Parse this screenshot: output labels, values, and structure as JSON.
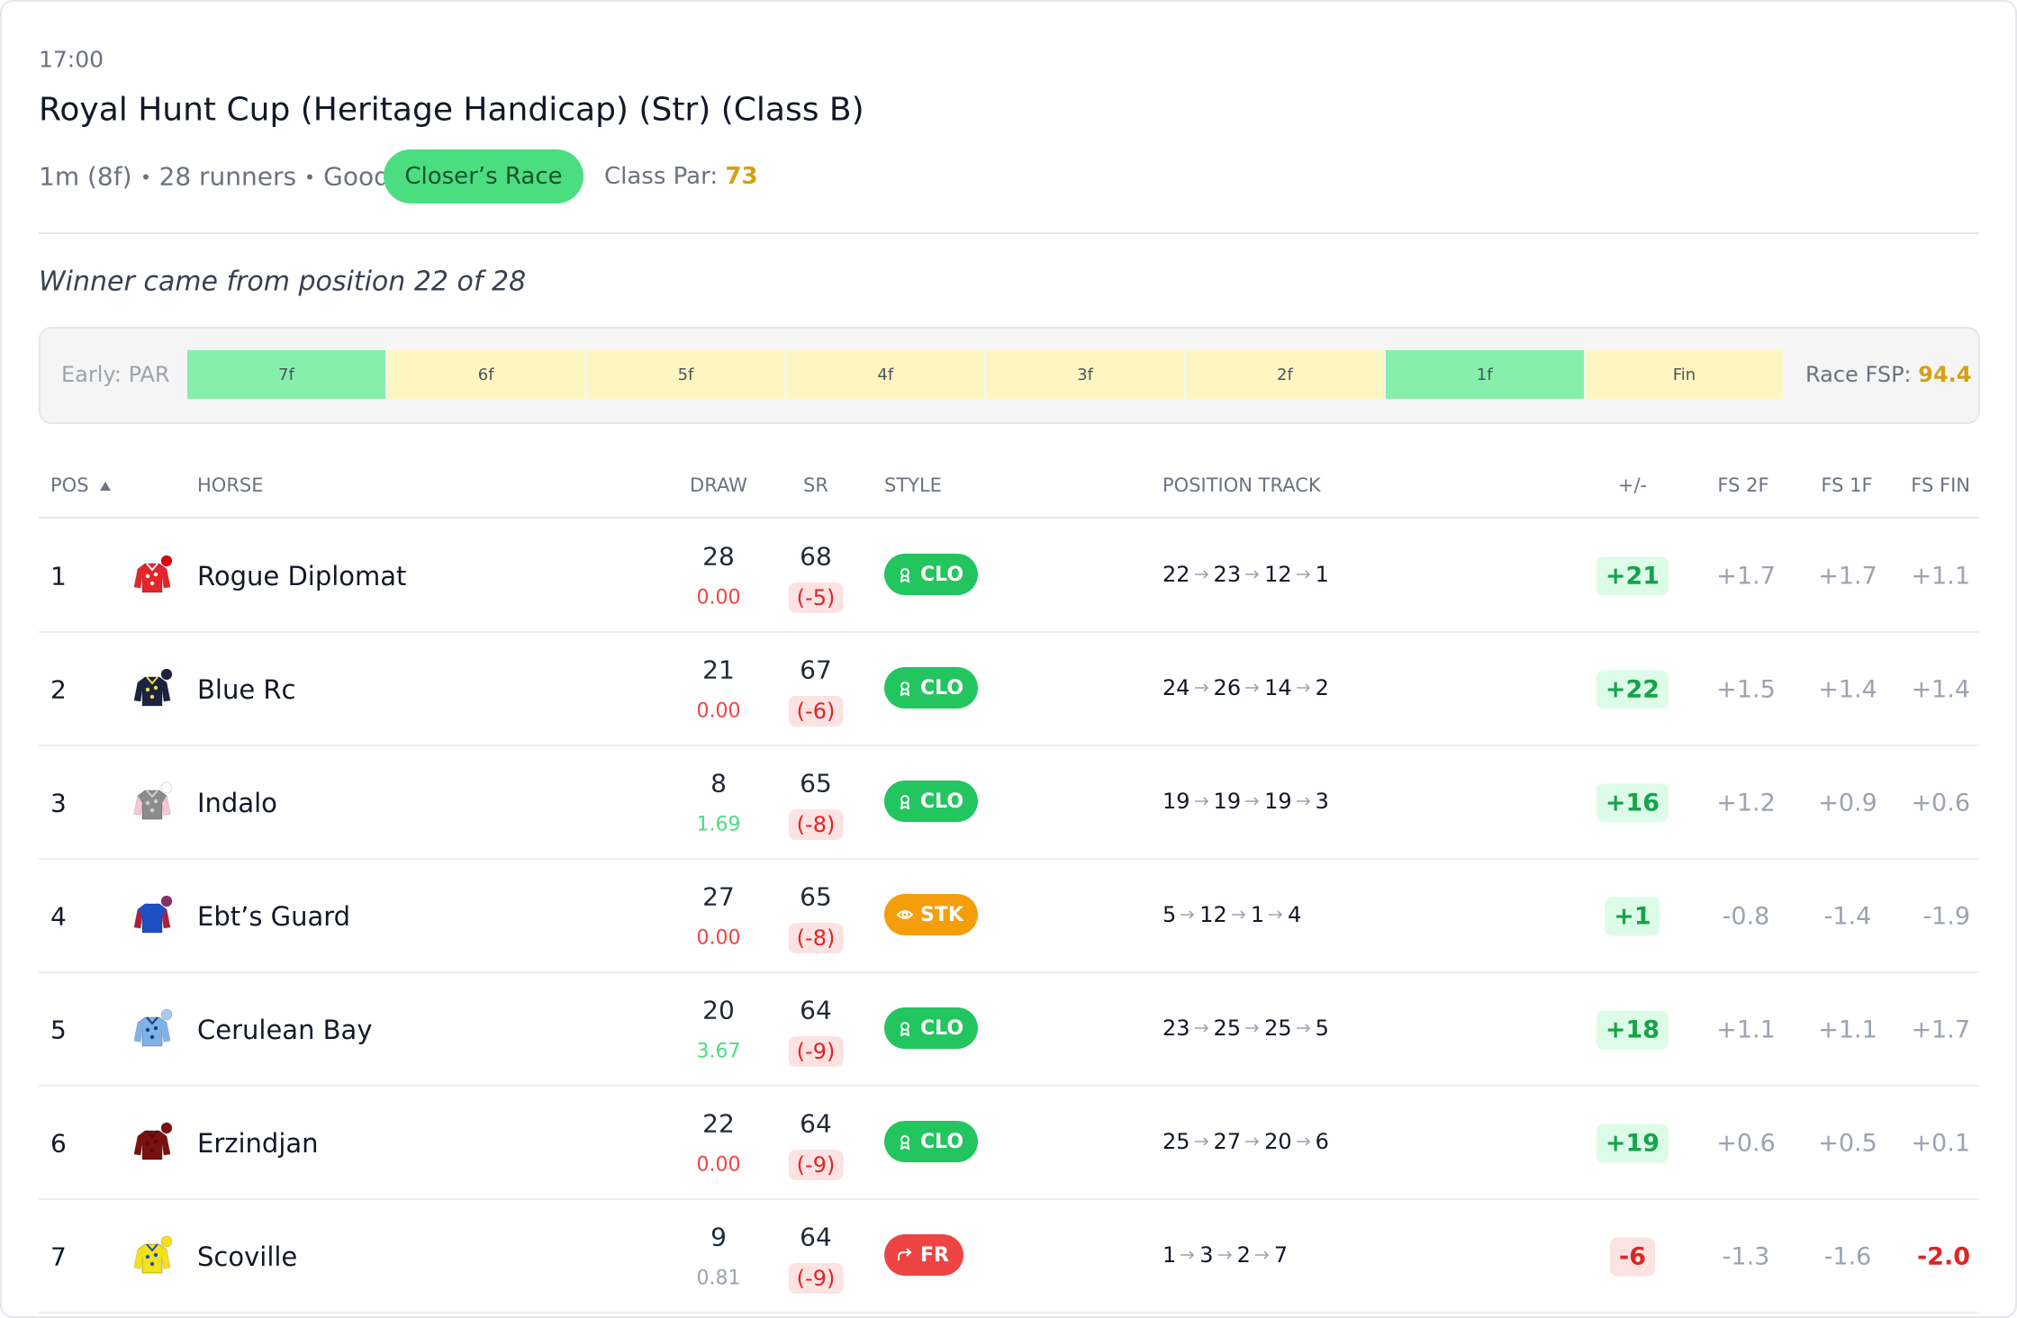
{
  "header": {
    "time": "17:00",
    "title": "Royal Hunt Cup (Heritage Handicap) (Str) (Class B)",
    "meta": [
      "1m (8f)",
      "28 runners",
      "Good"
    ],
    "badge": "Closer’s Race",
    "class_par_label": "Class Par:",
    "class_par_value": "73"
  },
  "note": "Winner came from position 22 of 28",
  "sectionals": {
    "early": "Early: PAR",
    "segments": [
      {
        "label": "7f",
        "color": "#86efac"
      },
      {
        "label": "6f",
        "color": "#fef6c1"
      },
      {
        "label": "5f",
        "color": "#fef6c1"
      },
      {
        "label": "4f",
        "color": "#fef6c1"
      },
      {
        "label": "3f",
        "color": "#fef6c1"
      },
      {
        "label": "2f",
        "color": "#fef6c1"
      },
      {
        "label": "1f",
        "color": "#86efac"
      },
      {
        "label": "Fin",
        "color": "#fef6c1"
      }
    ],
    "fsp_label": "Race FSP:",
    "fsp_value": "94.4"
  },
  "table": {
    "columns": [
      "POS",
      "HORSE",
      "DRAW",
      "SR",
      "STYLE",
      "POSITION TRACK",
      "+/-",
      "FS 2F",
      "FS 1F",
      "FS FIN"
    ],
    "rows": [
      {
        "pos": 1,
        "horse": "Rogue Diplomat",
        "silk": {
          "body": "#e3262b",
          "sleeves": "#e3262b",
          "cap": "#e3000b",
          "trim": "#ffffff"
        },
        "draw": 28,
        "draw_stat": "0.00",
        "draw_stat_color": "#ef4444",
        "sr": 68,
        "sr_diff": "(-5)",
        "style": {
          "label": "CLO",
          "color": "#22c55e",
          "icon": "award"
        },
        "track": [
          22,
          23,
          12,
          1
        ],
        "diff": "+21",
        "fs_2f": "+1.7",
        "fs_1f": "+1.7",
        "fs_fin": "+1.1"
      },
      {
        "pos": 2,
        "horse": "Blue Rc",
        "silk": {
          "body": "#1b2340",
          "sleeves": "#1b2340",
          "cap": "#1b2340",
          "trim": "#f0e040"
        },
        "draw": 21,
        "draw_stat": "0.00",
        "draw_stat_color": "#ef4444",
        "sr": 67,
        "sr_diff": "(-6)",
        "style": {
          "label": "CLO",
          "color": "#22c55e",
          "icon": "award"
        },
        "track": [
          24,
          26,
          14,
          2
        ],
        "diff": "+22",
        "fs_2f": "+1.5",
        "fs_1f": "+1.4",
        "fs_fin": "+1.4"
      },
      {
        "pos": 3,
        "horse": "Indalo",
        "silk": {
          "body": "#8c8c8c",
          "sleeves": "#f6c6d8",
          "cap": "#ffffff",
          "trim": "#d0d0d0"
        },
        "draw": 8,
        "draw_stat": "1.69",
        "draw_stat_color": "#4ade80",
        "sr": 65,
        "sr_diff": "(-8)",
        "style": {
          "label": "CLO",
          "color": "#22c55e",
          "icon": "award"
        },
        "track": [
          19,
          19,
          19,
          3
        ],
        "diff": "+16",
        "fs_2f": "+1.2",
        "fs_1f": "+0.9",
        "fs_fin": "+0.6"
      },
      {
        "pos": 4,
        "horse": "Ebt’s Guard",
        "silk": {
          "body": "#1f4fc4",
          "sleeves": "#b0203a",
          "cap": "#8b2f6b",
          "trim": "#1f4fc4"
        },
        "draw": 27,
        "draw_stat": "0.00",
        "draw_stat_color": "#ef4444",
        "sr": 65,
        "sr_diff": "(-8)",
        "style": {
          "label": "STK",
          "color": "#f59e0b",
          "icon": "eye"
        },
        "track": [
          5,
          12,
          1,
          4
        ],
        "diff": "+1",
        "fs_2f": "-0.8",
        "fs_1f": "-1.4",
        "fs_fin": "-1.9"
      },
      {
        "pos": 5,
        "horse": "Cerulean Bay",
        "silk": {
          "body": "#7fb3e8",
          "sleeves": "#7fb3e8",
          "cap": "#a8c8ee",
          "trim": "#1b3a78"
        },
        "draw": 20,
        "draw_stat": "3.67",
        "draw_stat_color": "#4ade80",
        "sr": 64,
        "sr_diff": "(-9)",
        "style": {
          "label": "CLO",
          "color": "#22c55e",
          "icon": "award"
        },
        "track": [
          23,
          25,
          25,
          5
        ],
        "diff": "+18",
        "fs_2f": "+1.1",
        "fs_1f": "+1.1",
        "fs_fin": "+1.7"
      },
      {
        "pos": 6,
        "horse": "Erzindjan",
        "silk": {
          "body": "#7a1010",
          "sleeves": "#7a1010",
          "cap": "#7a1010",
          "trim": "#5a0808"
        },
        "draw": 22,
        "draw_stat": "0.00",
        "draw_stat_color": "#ef4444",
        "sr": 64,
        "sr_diff": "(-9)",
        "style": {
          "label": "CLO",
          "color": "#22c55e",
          "icon": "award"
        },
        "track": [
          25,
          27,
          20,
          6
        ],
        "diff": "+19",
        "fs_2f": "+0.6",
        "fs_1f": "+0.5",
        "fs_fin": "+0.1"
      },
      {
        "pos": 7,
        "horse": "Scoville",
        "silk": {
          "body": "#f2e21a",
          "sleeves": "#f2e21a",
          "cap": "#f2e21a",
          "trim": "#2446c8"
        },
        "draw": 9,
        "draw_stat": "0.81",
        "draw_stat_color": "#9ca3af",
        "sr": 64,
        "sr_diff": "(-9)",
        "style": {
          "label": "FR",
          "color": "#ef4444",
          "icon": "trend"
        },
        "track": [
          1,
          3,
          2,
          7
        ],
        "diff": "-6",
        "fs_2f": "-1.3",
        "fs_1f": "-1.6",
        "fs_fin": "-2.0",
        "fs_fin_color": "#dc2626"
      }
    ]
  }
}
